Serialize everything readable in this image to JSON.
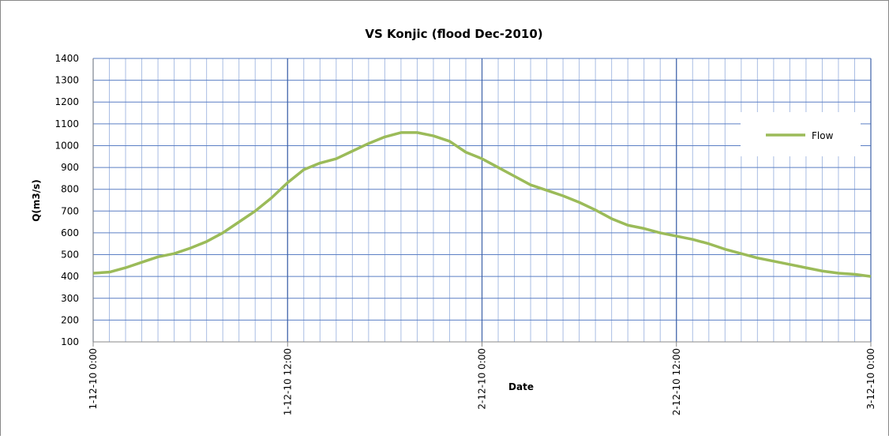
{
  "chart_data": {
    "type": "line",
    "title": "VS Konjic (flood Dec-2010)",
    "xlabel": "Date",
    "ylabel": "Q(m3/s)",
    "x": [
      0,
      1,
      2,
      3,
      4,
      5,
      6,
      7,
      8,
      9,
      10,
      11,
      12,
      13,
      14,
      15,
      16,
      17,
      18,
      19,
      20,
      21,
      22,
      23,
      24,
      25,
      26,
      27,
      28,
      29,
      30,
      31,
      32,
      33,
      34,
      35,
      36,
      37,
      38,
      39,
      40,
      41,
      42,
      43,
      44,
      45,
      46,
      47,
      48
    ],
    "series": [
      {
        "name": "Flow",
        "color": "#9bbb59",
        "values": [
          415,
          420,
          440,
          465,
          490,
          505,
          530,
          560,
          600,
          650,
          700,
          760,
          830,
          890,
          920,
          940,
          975,
          1010,
          1040,
          1060,
          1060,
          1045,
          1020,
          970,
          940,
          900,
          860,
          820,
          795,
          770,
          740,
          705,
          665,
          635,
          620,
          600,
          585,
          570,
          550,
          525,
          505,
          485,
          470,
          455,
          440,
          425,
          415,
          410,
          400
        ]
      }
    ],
    "xlim": [
      0,
      48
    ],
    "xticks": [
      {
        "value": 0,
        "label": "1-12-10 0:00"
      },
      {
        "value": 12,
        "label": "1-12-10 12:00"
      },
      {
        "value": 24,
        "label": "2-12-10 0:00"
      },
      {
        "value": 36,
        "label": "2-12-10 12:00"
      },
      {
        "value": 48,
        "label": "3-12-10 0:00"
      }
    ],
    "ylim": [
      100,
      1400
    ],
    "yticks": [
      100,
      200,
      300,
      400,
      500,
      600,
      700,
      800,
      900,
      1000,
      1100,
      1200,
      1300,
      1400
    ],
    "grid": true,
    "legend": "right"
  }
}
